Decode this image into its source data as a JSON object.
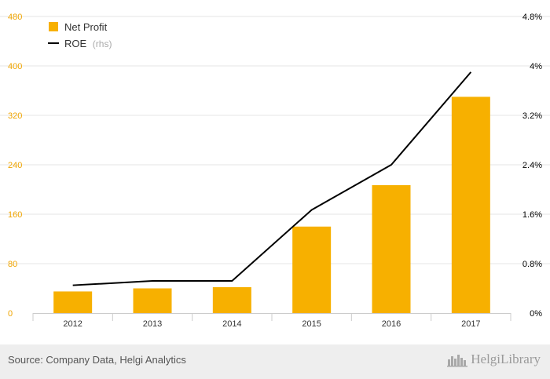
{
  "chart_data": {
    "type": "bar",
    "categories": [
      "2012",
      "2013",
      "2014",
      "2015",
      "2016",
      "2017"
    ],
    "series": [
      {
        "name": "Net Profit",
        "type": "bar",
        "axis": "left",
        "values": [
          35,
          40,
          42,
          140,
          207,
          350
        ]
      },
      {
        "name": "ROE",
        "type": "line",
        "axis": "right",
        "values": [
          0.45,
          0.52,
          0.52,
          1.67,
          2.4,
          3.9
        ]
      }
    ],
    "y_left": {
      "range": [
        0,
        480
      ],
      "ticks": [
        "0",
        "80",
        "160",
        "240",
        "320",
        "400",
        "480"
      ]
    },
    "y_right": {
      "range": [
        0,
        4.8
      ],
      "ticks": [
        "0%",
        "0.8%",
        "1.6%",
        "2.4%",
        "3.2%",
        "4%",
        "4.8%"
      ]
    },
    "legend": {
      "position": "top-left",
      "items": [
        {
          "label": "Net Profit",
          "unit": ""
        },
        {
          "label": "ROE",
          "unit": "(rhs)"
        }
      ]
    },
    "grid": true,
    "colors": {
      "bar": "#f7b000",
      "line": "#000000",
      "left_axis_text": "#f0a500",
      "grid": "#e6e6e6"
    }
  },
  "footer": {
    "source": "Source: Company Data, Helgi Analytics",
    "logo_text": "HelgiLibrary"
  }
}
